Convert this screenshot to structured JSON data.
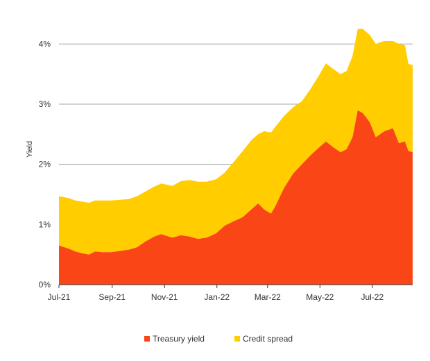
{
  "chart_data": {
    "type": "area",
    "stacked": true,
    "ylabel": "Yield",
    "xlabel": "",
    "title": "",
    "ylim": [
      0,
      4.5
    ],
    "yticks": [
      {
        "value": 0,
        "label": "0%"
      },
      {
        "value": 1,
        "label": "1%"
      },
      {
        "value": 2,
        "label": "2%"
      },
      {
        "value": 3,
        "label": "3%"
      },
      {
        "value": 4,
        "label": "4%"
      }
    ],
    "xrange": [
      "2021-07-01",
      "2022-08-17"
    ],
    "xticks": [
      {
        "date": "2021-07-01",
        "label": "Jul-21"
      },
      {
        "date": "2021-09-01",
        "label": "Sep-21"
      },
      {
        "date": "2021-11-01",
        "label": "Nov-21"
      },
      {
        "date": "2022-01-01",
        "label": "Jan-22"
      },
      {
        "date": "2022-03-01",
        "label": "Mar-22"
      },
      {
        "date": "2022-05-01",
        "label": "May-22"
      },
      {
        "date": "2022-07-01",
        "label": "Jul-22"
      }
    ],
    "grid": "horizontal",
    "legend_position": "bottom-center",
    "series": [
      {
        "name": "Treasury yield",
        "color": "#fa4616",
        "points": [
          [
            "2021-07-01",
            0.65
          ],
          [
            "2021-07-12",
            0.6
          ],
          [
            "2021-07-20",
            0.55
          ],
          [
            "2021-07-28",
            0.52
          ],
          [
            "2021-08-05",
            0.5
          ],
          [
            "2021-08-12",
            0.55
          ],
          [
            "2021-08-20",
            0.54
          ],
          [
            "2021-08-31",
            0.54
          ],
          [
            "2021-09-10",
            0.56
          ],
          [
            "2021-09-20",
            0.58
          ],
          [
            "2021-09-30",
            0.62
          ],
          [
            "2021-10-10",
            0.72
          ],
          [
            "2021-10-20",
            0.8
          ],
          [
            "2021-10-28",
            0.84
          ],
          [
            "2021-11-01",
            0.82
          ],
          [
            "2021-11-10",
            0.78
          ],
          [
            "2021-11-20",
            0.82
          ],
          [
            "2021-11-30",
            0.8
          ],
          [
            "2021-12-10",
            0.76
          ],
          [
            "2021-12-20",
            0.78
          ],
          [
            "2021-12-31",
            0.85
          ],
          [
            "2022-01-10",
            0.98
          ],
          [
            "2022-01-20",
            1.05
          ],
          [
            "2022-01-31",
            1.12
          ],
          [
            "2022-02-10",
            1.25
          ],
          [
            "2022-02-18",
            1.35
          ],
          [
            "2022-02-25",
            1.25
          ],
          [
            "2022-03-05",
            1.18
          ],
          [
            "2022-03-10",
            1.3
          ],
          [
            "2022-03-20",
            1.6
          ],
          [
            "2022-03-31",
            1.85
          ],
          [
            "2022-04-10",
            2.0
          ],
          [
            "2022-04-20",
            2.15
          ],
          [
            "2022-04-30",
            2.28
          ],
          [
            "2022-05-08",
            2.38
          ],
          [
            "2022-05-15",
            2.3
          ],
          [
            "2022-05-25",
            2.2
          ],
          [
            "2022-06-01",
            2.25
          ],
          [
            "2022-06-08",
            2.45
          ],
          [
            "2022-06-14",
            2.9
          ],
          [
            "2022-06-20",
            2.85
          ],
          [
            "2022-06-28",
            2.7
          ],
          [
            "2022-07-05",
            2.45
          ],
          [
            "2022-07-15",
            2.55
          ],
          [
            "2022-07-25",
            2.6
          ],
          [
            "2022-08-01",
            2.35
          ],
          [
            "2022-08-08",
            2.38
          ],
          [
            "2022-08-12",
            2.22
          ],
          [
            "2022-08-17",
            2.2
          ]
        ]
      },
      {
        "name": "Credit spread",
        "color": "#ffcd00",
        "points": [
          [
            "2021-07-01",
            0.82
          ],
          [
            "2021-07-12",
            0.84
          ],
          [
            "2021-07-20",
            0.85
          ],
          [
            "2021-07-28",
            0.86
          ],
          [
            "2021-08-05",
            0.86
          ],
          [
            "2021-08-12",
            0.85
          ],
          [
            "2021-08-20",
            0.86
          ],
          [
            "2021-08-31",
            0.86
          ],
          [
            "2021-09-10",
            0.85
          ],
          [
            "2021-09-20",
            0.84
          ],
          [
            "2021-09-30",
            0.85
          ],
          [
            "2021-10-10",
            0.83
          ],
          [
            "2021-10-20",
            0.83
          ],
          [
            "2021-10-28",
            0.84
          ],
          [
            "2021-11-01",
            0.85
          ],
          [
            "2021-11-10",
            0.86
          ],
          [
            "2021-11-20",
            0.9
          ],
          [
            "2021-11-30",
            0.94
          ],
          [
            "2021-12-10",
            0.95
          ],
          [
            "2021-12-20",
            0.93
          ],
          [
            "2021-12-31",
            0.9
          ],
          [
            "2022-01-10",
            0.88
          ],
          [
            "2022-01-20",
            0.98
          ],
          [
            "2022-01-31",
            1.1
          ],
          [
            "2022-02-10",
            1.15
          ],
          [
            "2022-02-18",
            1.15
          ],
          [
            "2022-02-25",
            1.3
          ],
          [
            "2022-03-05",
            1.35
          ],
          [
            "2022-03-10",
            1.32
          ],
          [
            "2022-03-20",
            1.2
          ],
          [
            "2022-03-31",
            1.1
          ],
          [
            "2022-04-10",
            1.05
          ],
          [
            "2022-04-20",
            1.1
          ],
          [
            "2022-04-30",
            1.2
          ],
          [
            "2022-05-08",
            1.3
          ],
          [
            "2022-05-15",
            1.3
          ],
          [
            "2022-05-25",
            1.3
          ],
          [
            "2022-06-01",
            1.3
          ],
          [
            "2022-06-08",
            1.35
          ],
          [
            "2022-06-14",
            1.35
          ],
          [
            "2022-06-20",
            1.4
          ],
          [
            "2022-06-28",
            1.45
          ],
          [
            "2022-07-05",
            1.55
          ],
          [
            "2022-07-15",
            1.5
          ],
          [
            "2022-07-25",
            1.45
          ],
          [
            "2022-08-01",
            1.65
          ],
          [
            "2022-08-08",
            1.6
          ],
          [
            "2022-08-12",
            1.45
          ],
          [
            "2022-08-17",
            1.45
          ]
        ]
      }
    ]
  }
}
